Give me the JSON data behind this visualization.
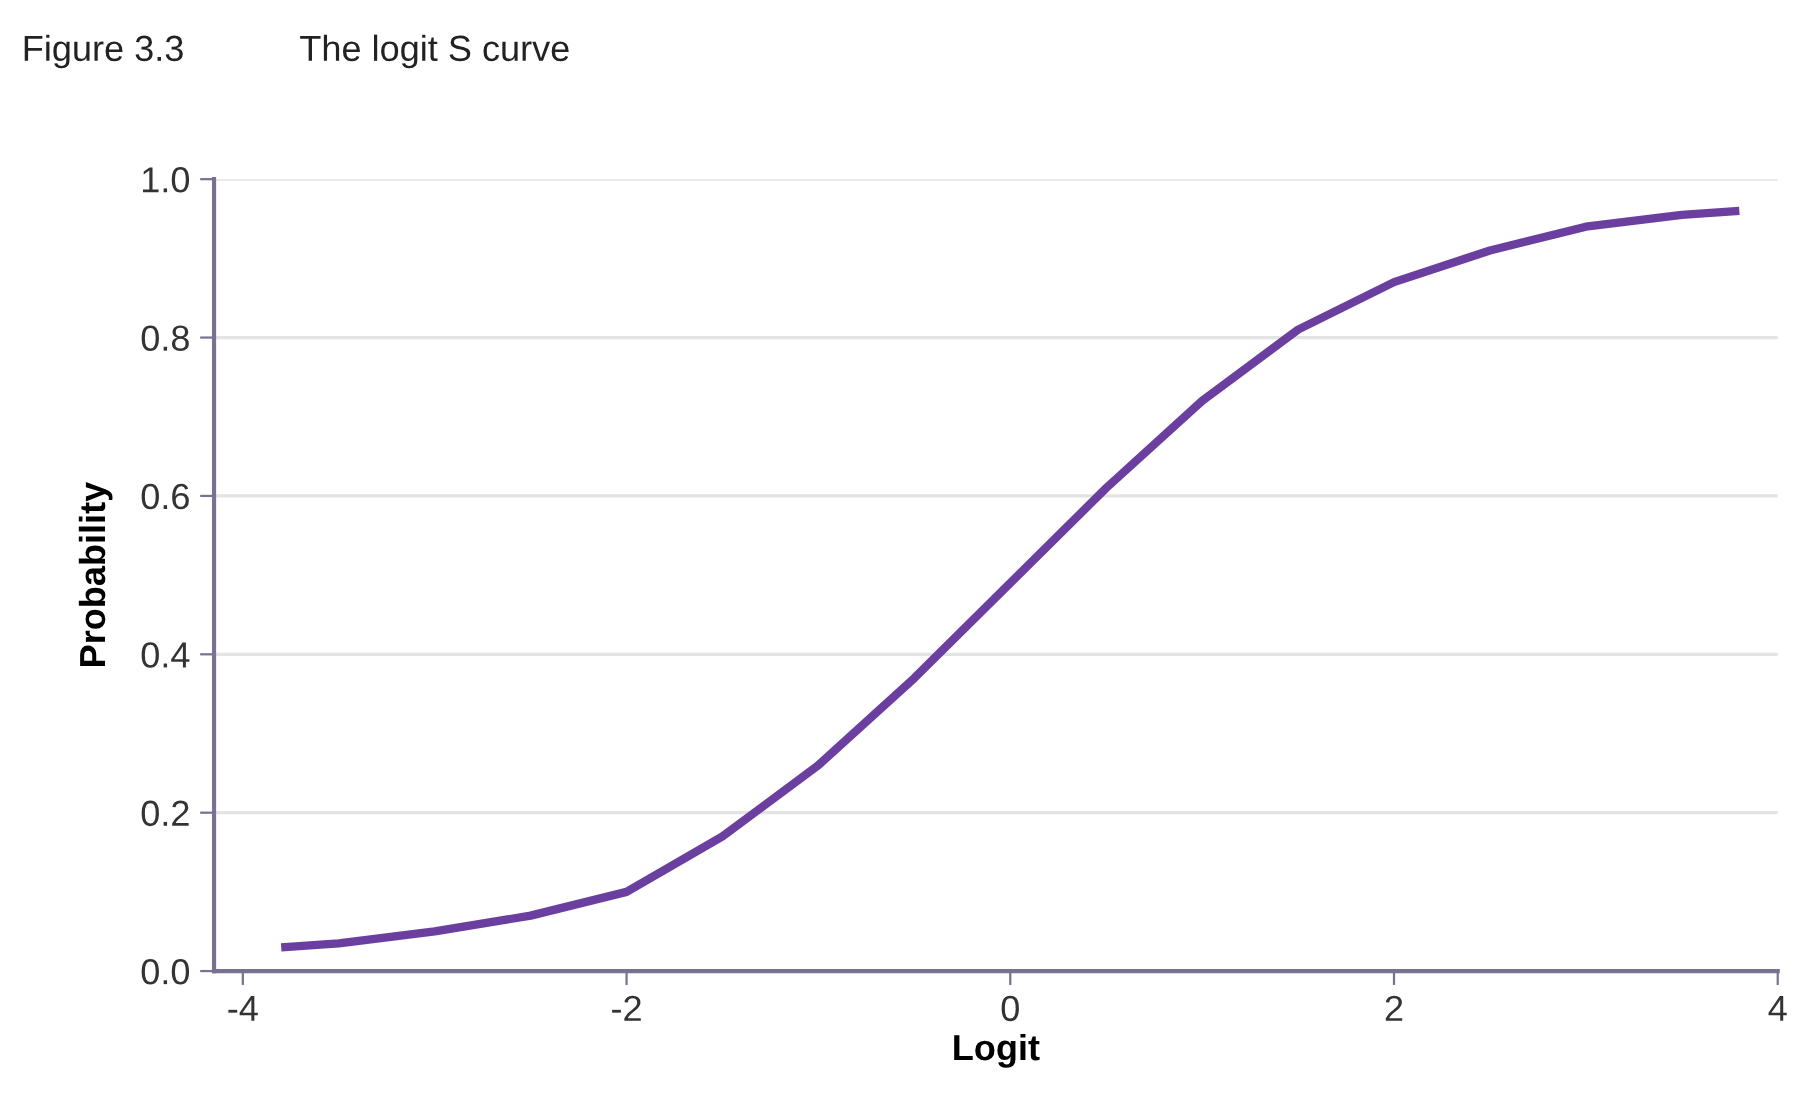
{
  "chart_data": {
    "type": "line",
    "title": "Figure 3.3",
    "subtitle": "The logit S curve",
    "xlabel": "Logit",
    "ylabel": "Probability",
    "x": [
      -3.8,
      -3.5,
      -3,
      -2.5,
      -2,
      -1.5,
      -1,
      -0.5,
      0,
      0.5,
      1,
      1.5,
      2,
      2.5,
      3,
      3.5,
      3.8
    ],
    "series": [
      {
        "color": "#6b3fa0",
        "values": [
          0.03,
          0.035,
          0.05,
          0.07,
          0.1,
          0.17,
          0.26,
          0.37,
          0.49,
          0.61,
          0.72,
          0.81,
          0.87,
          0.91,
          0.94,
          0.955,
          0.96
        ]
      }
    ],
    "xlim": [
      -4.15,
      4.0
    ],
    "ylim": [
      0,
      1.0
    ],
    "xticks": [
      {
        "value": -4,
        "label": "-4"
      },
      {
        "value": -2,
        "label": "-2"
      },
      0,
      2,
      4
    ],
    "yticks": [
      {
        "value": 0,
        "label": "0.0"
      },
      0.2,
      0.4,
      0.6,
      0.8,
      {
        "value": 1.0,
        "label": "1.0"
      }
    ],
    "grid": "y",
    "line_style": "solid",
    "marker": "none"
  }
}
